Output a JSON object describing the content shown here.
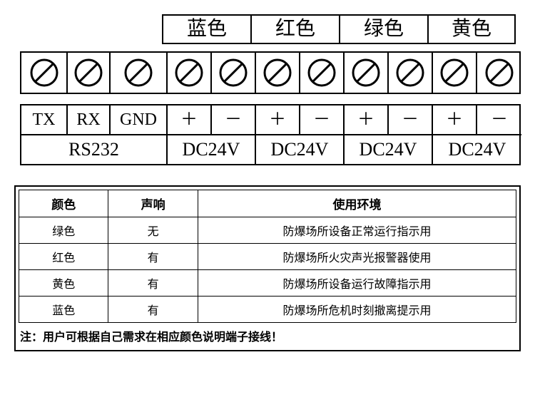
{
  "color_header": [
    "蓝色",
    "红色",
    "绿色",
    "黄色"
  ],
  "terminals": {
    "count": 11,
    "screw_icon": {
      "stroke": "#000000",
      "stroke_width": 3,
      "diameter": 36
    }
  },
  "pin_labels": [
    "TX",
    "RX",
    "GND",
    "＋",
    "－",
    "＋",
    "－",
    "＋",
    "－",
    "＋",
    "－"
  ],
  "group_labels": [
    "RS232",
    "DC24V",
    "DC24V",
    "DC24V",
    "DC24V"
  ],
  "desc_table": {
    "headers": [
      "颜色",
      "声响",
      "使用环境"
    ],
    "col_widths": [
      "18%",
      "18%",
      "64%"
    ],
    "rows": [
      [
        "绿色",
        "无",
        "防爆场所设备正常运行指示用"
      ],
      [
        "红色",
        "有",
        "防爆场所火灾声光报警器使用"
      ],
      [
        "黄色",
        "有",
        "防爆场所设备运行故障指示用"
      ],
      [
        "蓝色",
        "有",
        "防爆场所危机时刻撤离提示用"
      ]
    ]
  },
  "note": "注：用户可根据自己需求在相应颜色说明端子接线！"
}
